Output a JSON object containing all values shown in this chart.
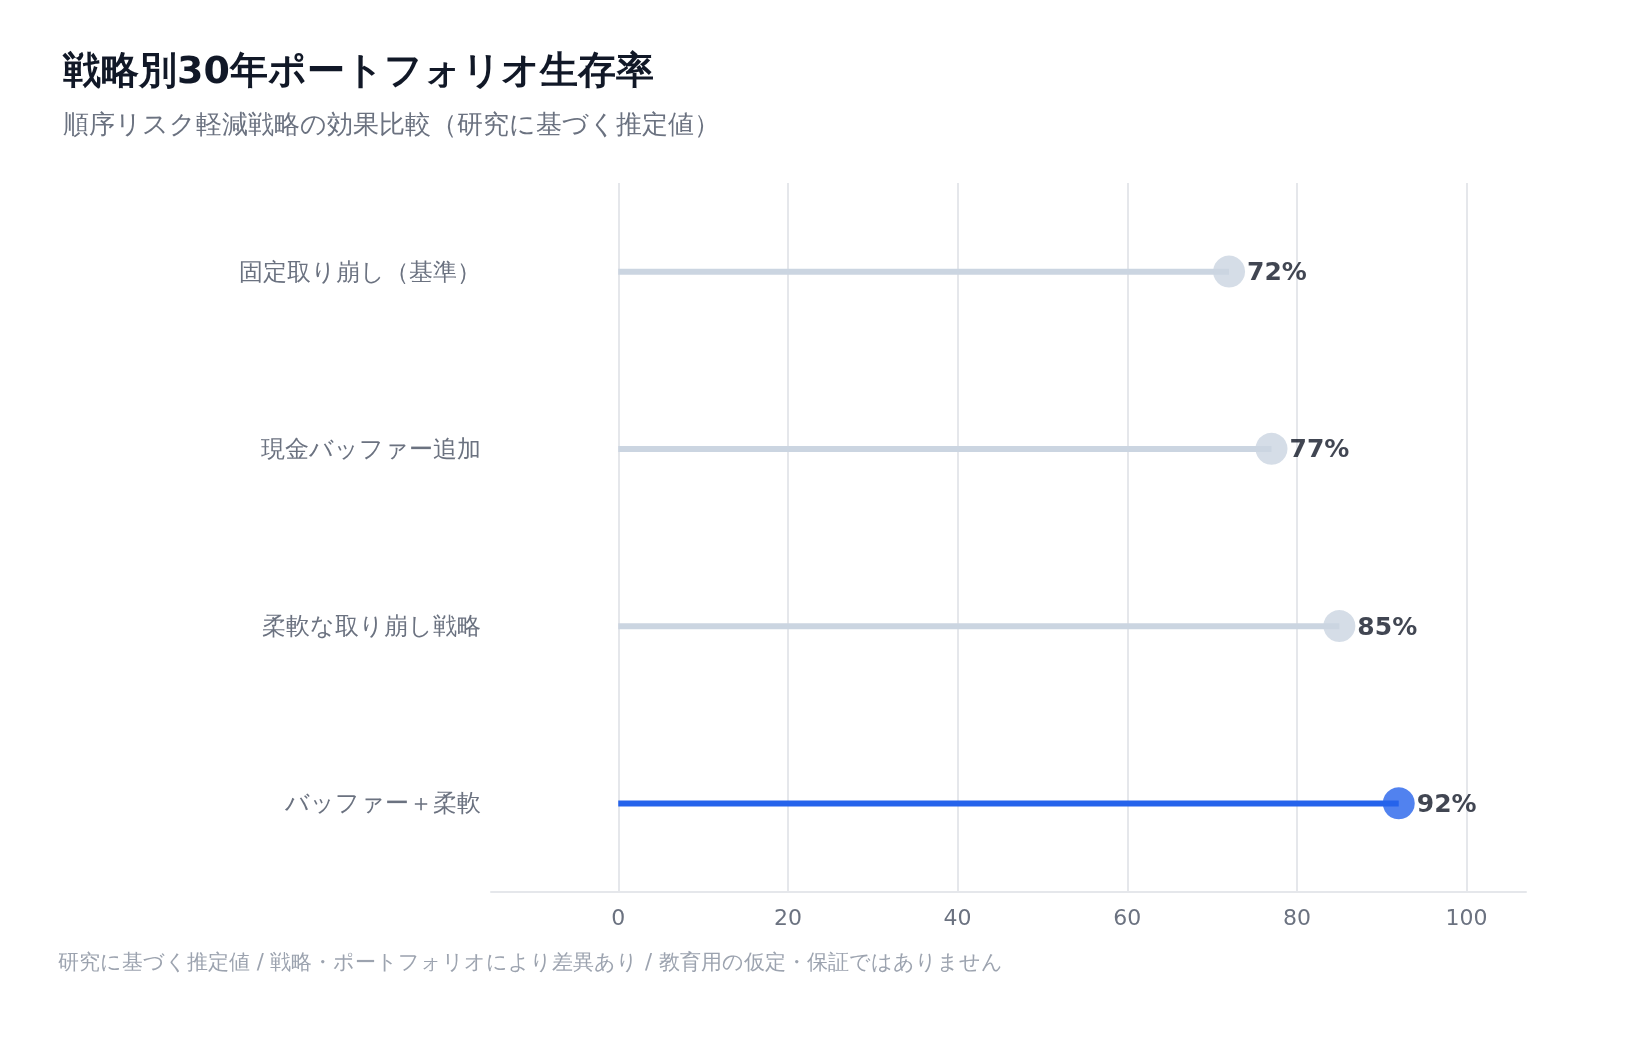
{
  "chart_data": {
    "type": "lollipop",
    "orientation": "horizontal",
    "title": "戦略別30年ポートフォリオ生存率",
    "subtitle": "順序リスク軽減戦略の効果比較（研究に基づく推定値）",
    "categories": [
      "固定取り崩し（基準）",
      "現金バッファー追加",
      "柔軟な取り崩し戦略",
      "バッファー＋柔軟"
    ],
    "values": [
      72,
      77,
      85,
      92
    ],
    "colors": [
      "#cbd5e1",
      "#cbd5e1",
      "#cbd5e1",
      "#2563eb"
    ],
    "value_labels": [
      "72%",
      "77%",
      "85%",
      "92%"
    ],
    "xlim": [
      -15,
      107
    ],
    "xticks": [
      0,
      20,
      40,
      60,
      80,
      100
    ],
    "grid": "x",
    "marker": "circle",
    "annotations": [
      "研究に基づく推定値 / 戦略・ポートフォリオにより差異あり / 教育用の仮定・保証ではありません"
    ]
  }
}
